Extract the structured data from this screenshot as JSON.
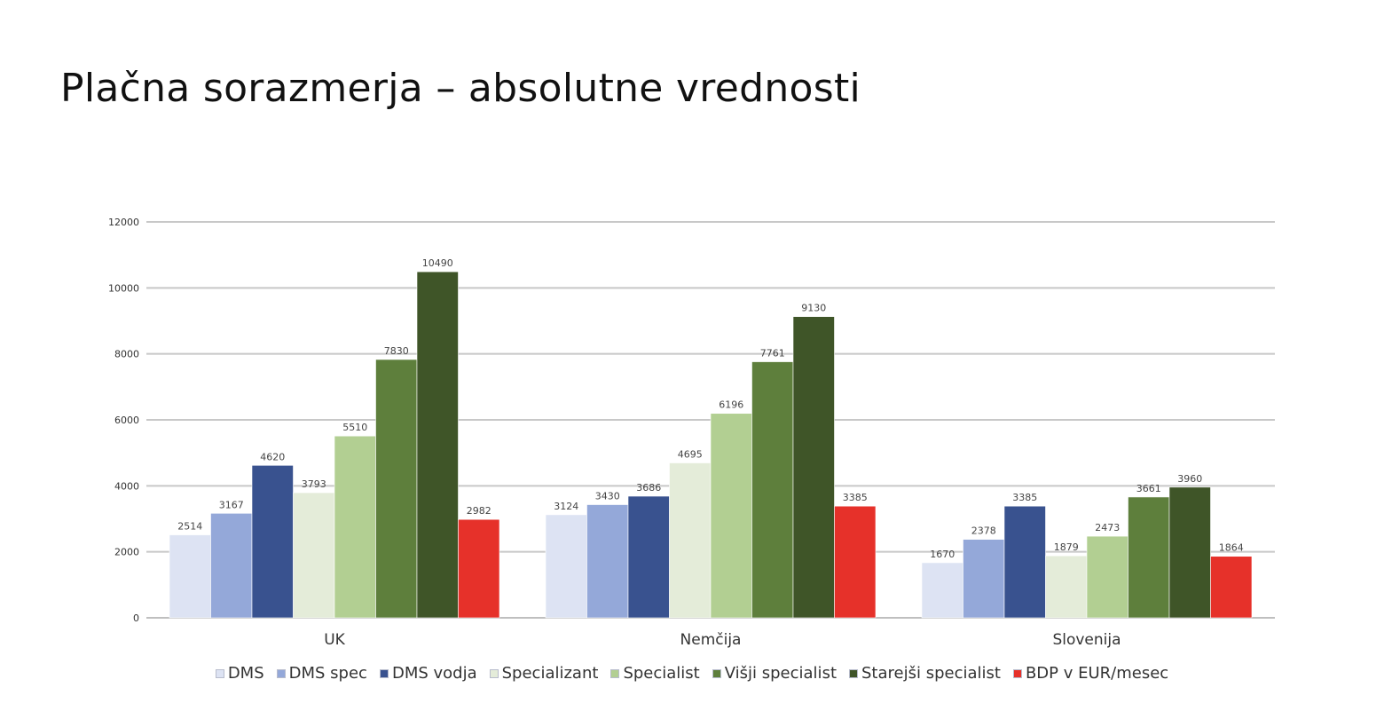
{
  "page": {
    "title": "Plačna sorazmerja – absolutne vrednosti"
  },
  "chart_data": {
    "type": "bar",
    "title": "",
    "xlabel": "",
    "ylabel": "",
    "ylim": [
      0,
      12000
    ],
    "yticks": [
      "0",
      "2000",
      "4000",
      "6000",
      "8000",
      "10000",
      "12000"
    ],
    "grid": true,
    "legend_position": "bottom",
    "categories": [
      "UK",
      "Nemčija",
      "Slovenija"
    ],
    "series": [
      {
        "name": "DMS",
        "color": "#dde3f3",
        "values": [
          2514,
          3124,
          1670
        ]
      },
      {
        "name": "DMS spec",
        "color": "#94a8d9",
        "values": [
          3167,
          3430,
          2378
        ]
      },
      {
        "name": "DMS vodja",
        "color": "#39528f",
        "values": [
          4620,
          3686,
          3385
        ]
      },
      {
        "name": "Specializant",
        "color": "#e4ecd9",
        "values": [
          3793,
          4695,
          1879
        ]
      },
      {
        "name": "Specialist",
        "color": "#b2cf92",
        "values": [
          5510,
          6196,
          2473
        ]
      },
      {
        "name": "Višji specialist",
        "color": "#5e7f3c",
        "values": [
          7830,
          7761,
          3661
        ]
      },
      {
        "name": "Starejši specialist",
        "color": "#3f5528",
        "values": [
          10490,
          9130,
          3960
        ]
      },
      {
        "name": "BDP v EUR/mesec",
        "color": "#e6312a",
        "values": [
          2982,
          3385,
          1864
        ]
      }
    ]
  }
}
